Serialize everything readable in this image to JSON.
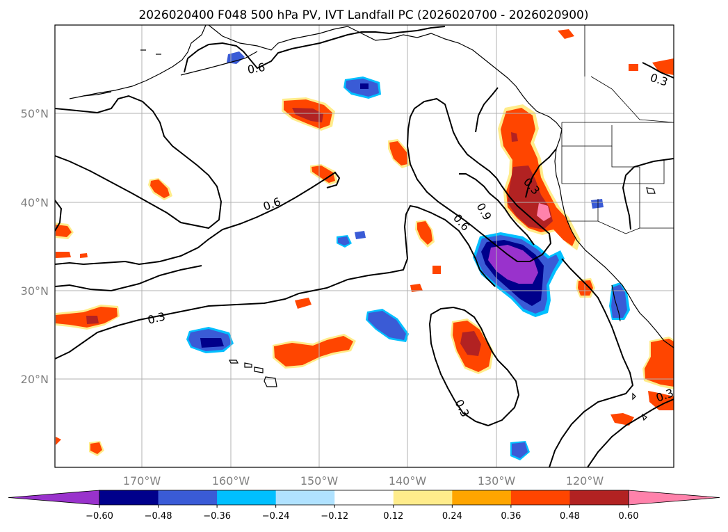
{
  "title": "2026020400 F048 500 hPa PV, IVT Landfall PC (2026020700 - 2026020900)",
  "map": {
    "lon_ticks": [
      "170°W",
      "160°W",
      "150°W",
      "140°W",
      "130°W",
      "120°W"
    ],
    "lat_ticks": [
      "50°N",
      "40°N",
      "30°N",
      "20°N"
    ],
    "contour_labels": [
      "0.6",
      "0.6",
      "0.6",
      "0.9",
      "0.3",
      "0.3",
      "0.3",
      "0.3",
      "0.3"
    ]
  },
  "colorbar": {
    "ticks": [
      "−0.60",
      "−0.48",
      "−0.36",
      "−0.24",
      "−0.12",
      "0.12",
      "0.24",
      "0.36",
      "0.48",
      "0.60"
    ],
    "colors": [
      "#9932cc",
      "#00008b",
      "#3a5bd6",
      "#00bfff",
      "#b0e2ff",
      "#ffffff",
      "#ffec8b",
      "#ffa500",
      "#ff4500",
      "#b22222",
      "#ff82ab"
    ]
  },
  "colors": {
    "land_outline": "#000000",
    "contour": "#000000",
    "grid": "#b0b0b0"
  }
}
